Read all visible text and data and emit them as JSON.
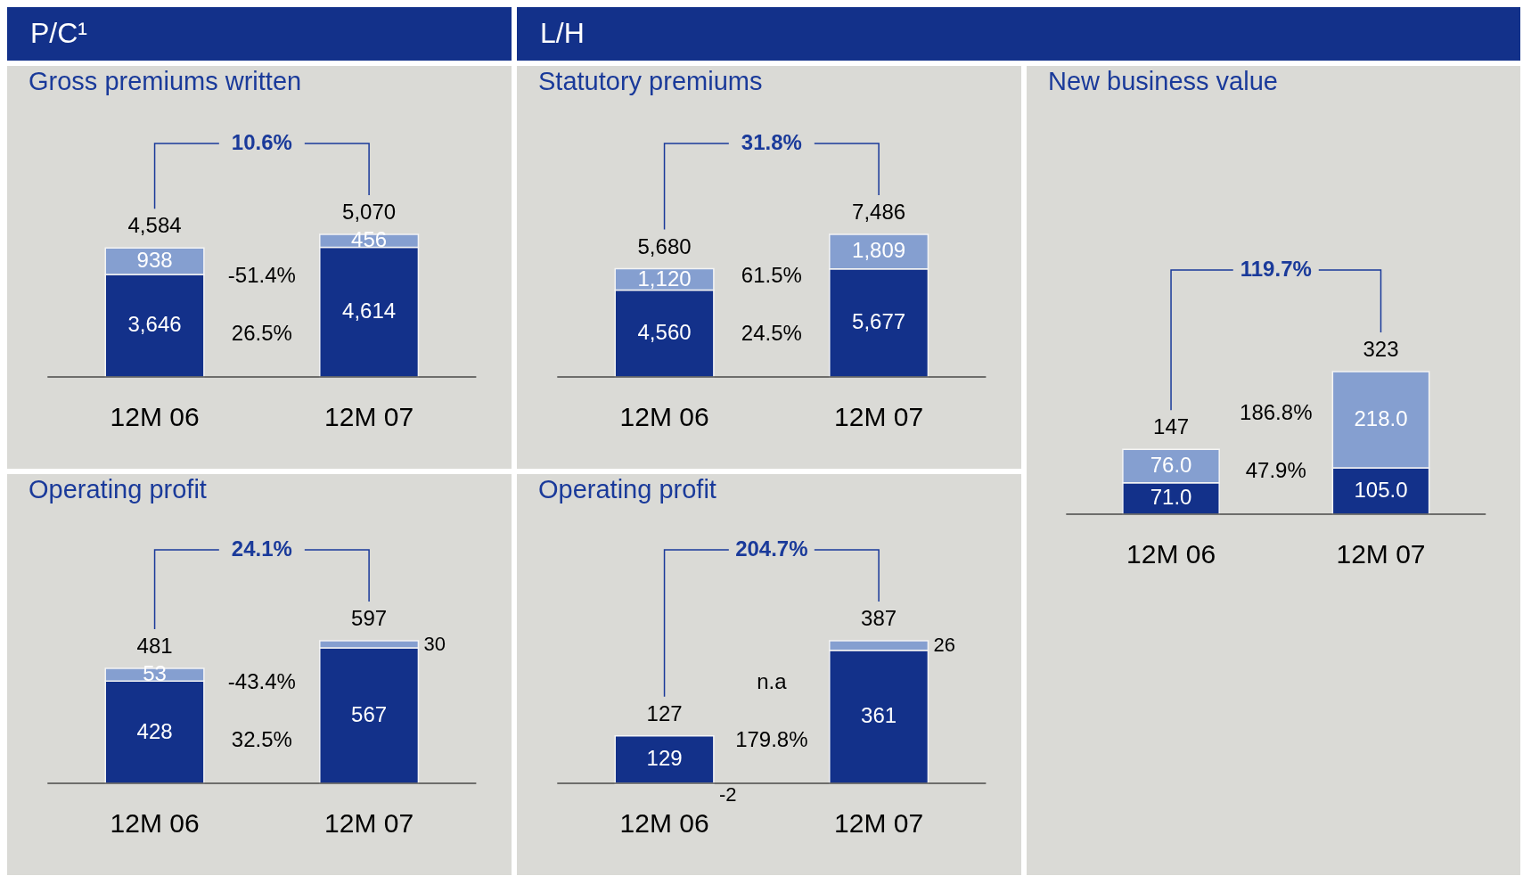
{
  "chart_data": [
    {
      "type": "other",
      "title": "P/C¹"
    },
    {
      "type": "other",
      "title": "L/H"
    },
    {
      "type": "bar",
      "title": "Gross premiums written",
      "stacked": true,
      "categories": [
        "12M 06",
        "12M 07"
      ],
      "series": [
        {
          "color": "#13318a",
          "values": [
            3646,
            4614
          ],
          "value_labels": [
            "3,646",
            "4,614"
          ]
        },
        {
          "color": "#859fd0",
          "values": [
            938,
            456
          ],
          "value_labels": [
            "938",
            "456"
          ]
        }
      ],
      "totals": [
        "4,584",
        "5,070"
      ],
      "annotations": [
        "10.6%",
        "-51.4%",
        "26.5%"
      ]
    },
    {
      "type": "bar",
      "title": "Statutory premiums",
      "stacked": true,
      "categories": [
        "12M 06",
        "12M 07"
      ],
      "series": [
        {
          "color": "#13318a",
          "values": [
            4560,
            5677
          ],
          "value_labels": [
            "4,560",
            "5,677"
          ]
        },
        {
          "color": "#859fd0",
          "values": [
            1120,
            1809
          ],
          "value_labels": [
            "1,120",
            "1,809"
          ]
        }
      ],
      "totals": [
        "5,680",
        "7,486"
      ],
      "annotations": [
        "31.8%",
        "61.5%",
        "24.5%"
      ]
    },
    {
      "type": "bar",
      "title": "New business value",
      "stacked": true,
      "categories": [
        "12M 06",
        "12M 07"
      ],
      "series": [
        {
          "color": "#13318a",
          "values": [
            71.0,
            105.0
          ],
          "value_labels": [
            "71.0",
            "105.0"
          ]
        },
        {
          "color": "#859fd0",
          "values": [
            76.0,
            218.0
          ],
          "value_labels": [
            "76.0",
            "218.0"
          ]
        }
      ],
      "totals": [
        "147",
        "323"
      ],
      "annotations": [
        "119.7%",
        "186.8%",
        "47.9%"
      ]
    },
    {
      "type": "bar",
      "title": "Operating profit",
      "stacked": true,
      "categories": [
        "12M 06",
        "12M 07"
      ],
      "series": [
        {
          "color": "#13318a",
          "values": [
            428,
            567
          ],
          "value_labels": [
            "428",
            "567"
          ]
        },
        {
          "color": "#859fd0",
          "values": [
            53,
            30
          ],
          "value_labels": [
            "53",
            "30"
          ]
        }
      ],
      "totals": [
        "481",
        "597"
      ],
      "annotations": [
        "24.1%",
        "-43.4%",
        "32.5%"
      ]
    },
    {
      "type": "bar",
      "title": "Operating profit",
      "stacked": true,
      "categories": [
        "12M 06",
        "12M 07"
      ],
      "series": [
        {
          "color": "#13318a",
          "values": [
            129,
            361
          ],
          "value_labels": [
            "129",
            "361"
          ]
        },
        {
          "color": "#859fd0",
          "values": [
            -2,
            26
          ],
          "value_labels": [
            "-2",
            "26"
          ]
        }
      ],
      "totals": [
        "127",
        "387"
      ],
      "annotations": [
        "204.7%",
        "n.a",
        "179.8%"
      ]
    }
  ]
}
